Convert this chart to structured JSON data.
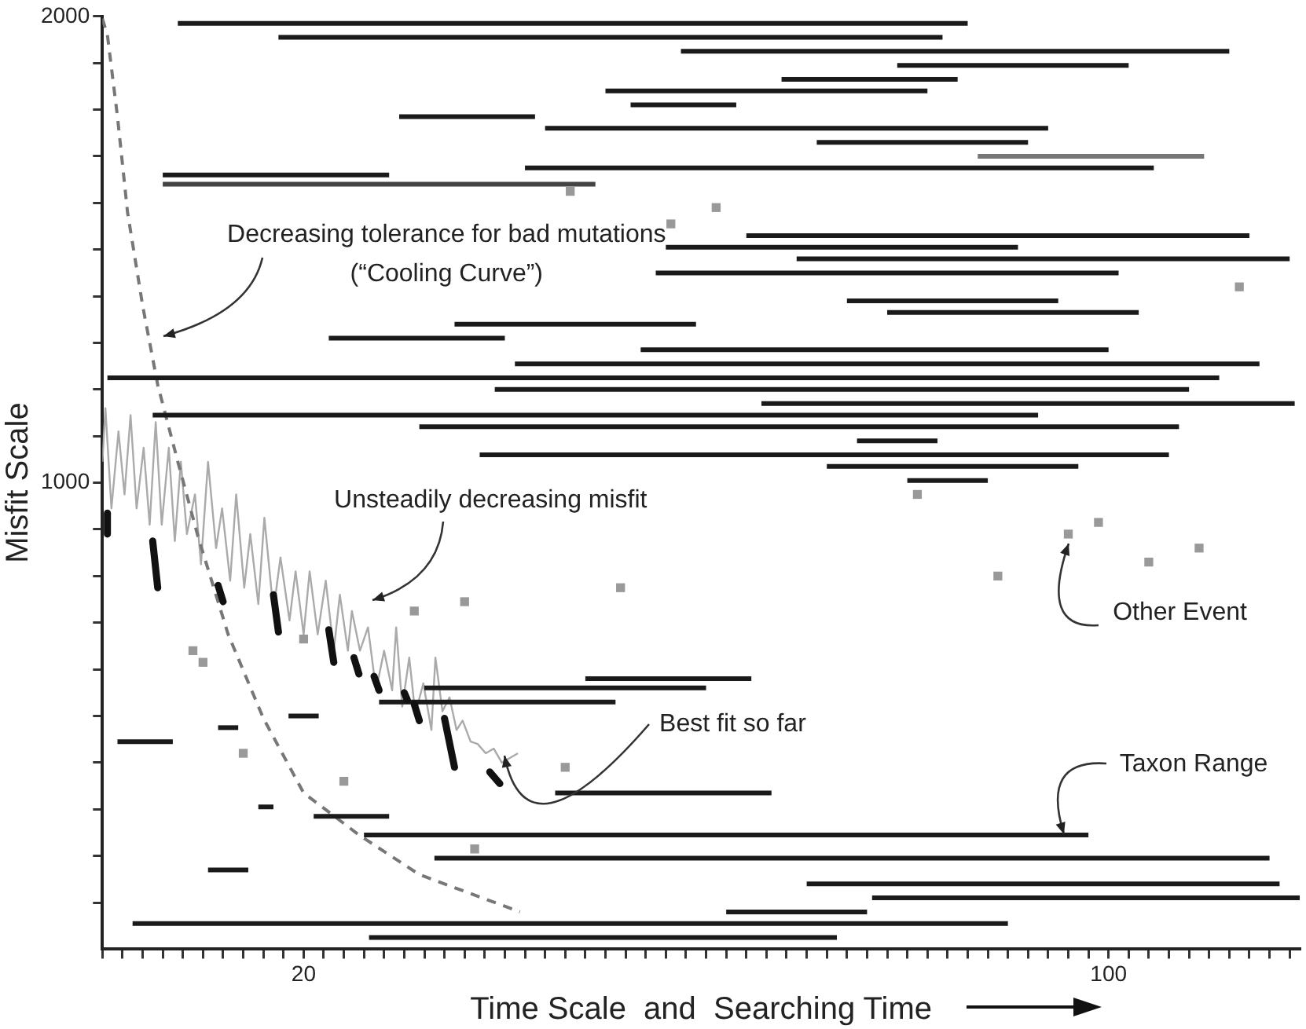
{
  "chart_data": {
    "type": "line",
    "xlabel": "Time Scale  and  Searching Time",
    "ylabel": "Misfit Scale",
    "xlim": [
      0,
      119
    ],
    "ylim": [
      0,
      2000
    ],
    "xticks": [
      {
        "value": 0,
        "label": null
      },
      {
        "value": 2,
        "label": null
      },
      {
        "value": 4,
        "label": null
      },
      {
        "value": 6,
        "label": null
      },
      {
        "value": 8,
        "label": null
      },
      {
        "value": 10,
        "label": null
      },
      {
        "value": 12,
        "label": null
      },
      {
        "value": 14,
        "label": null
      },
      {
        "value": 16,
        "label": null
      },
      {
        "value": 18,
        "label": null
      },
      20,
      {
        "value": 22,
        "label": null
      },
      {
        "value": 24,
        "label": null
      },
      {
        "value": 26,
        "label": null
      },
      {
        "value": 28,
        "label": null
      },
      {
        "value": 30,
        "label": null
      },
      {
        "value": 32,
        "label": null
      },
      {
        "value": 34,
        "label": null
      },
      {
        "value": 36,
        "label": null
      },
      {
        "value": 38,
        "label": null
      },
      {
        "value": 40,
        "label": null
      },
      {
        "value": 42,
        "label": null
      },
      {
        "value": 44,
        "label": null
      },
      {
        "value": 46,
        "label": null
      },
      {
        "value": 48,
        "label": null
      },
      {
        "value": 50,
        "label": null
      },
      {
        "value": 52,
        "label": null
      },
      {
        "value": 54,
        "label": null
      },
      {
        "value": 56,
        "label": null
      },
      {
        "value": 58,
        "label": null
      },
      {
        "value": 60,
        "label": null
      },
      {
        "value": 62,
        "label": null
      },
      {
        "value": 64,
        "label": null
      },
      {
        "value": 66,
        "label": null
      },
      {
        "value": 68,
        "label": null
      },
      {
        "value": 70,
        "label": null
      },
      {
        "value": 72,
        "label": null
      },
      {
        "value": 74,
        "label": null
      },
      {
        "value": 76,
        "label": null
      },
      {
        "value": 78,
        "label": null
      },
      {
        "value": 80,
        "label": null
      },
      {
        "value": 82,
        "label": null
      },
      {
        "value": 84,
        "label": null
      },
      {
        "value": 86,
        "label": null
      },
      {
        "value": 88,
        "label": null
      },
      {
        "value": 90,
        "label": null
      },
      {
        "value": 92,
        "label": null
      },
      {
        "value": 94,
        "label": null
      },
      {
        "value": 96,
        "label": null
      },
      {
        "value": 98,
        "label": null
      },
      100,
      {
        "value": 102,
        "label": null
      },
      {
        "value": 104,
        "label": null
      },
      {
        "value": 106,
        "label": null
      },
      {
        "value": 108,
        "label": null
      },
      {
        "value": 110,
        "label": null
      },
      {
        "value": 112,
        "label": null
      },
      {
        "value": 114,
        "label": null
      },
      {
        "value": 116,
        "label": null
      },
      {
        "value": 118,
        "label": null
      }
    ],
    "yticks": [
      {
        "value": 100,
        "label": null
      },
      {
        "value": 200,
        "label": null
      },
      {
        "value": 300,
        "label": null
      },
      {
        "value": 400,
        "label": null
      },
      {
        "value": 500,
        "label": null
      },
      {
        "value": 600,
        "label": null
      },
      {
        "value": 700,
        "label": null
      },
      {
        "value": 800,
        "label": null
      },
      {
        "value": 900,
        "label": null
      },
      1000,
      {
        "value": 1100,
        "label": null
      },
      {
        "value": 1200,
        "label": null
      },
      {
        "value": 1300,
        "label": null
      },
      {
        "value": 1400,
        "label": null
      },
      {
        "value": 1500,
        "label": null
      },
      {
        "value": 1600,
        "label": null
      },
      {
        "value": 1700,
        "label": null
      },
      {
        "value": 1800,
        "label": null
      },
      {
        "value": 1900,
        "label": null
      },
      2000
    ],
    "grid": false,
    "legend": false,
    "annotations": [
      "Decreasing tolerance for bad mutations\n(“Cooling Curve”)",
      "Unsteadily decreasing misfit",
      {
        "text": "Best fit so far",
        "x": 40,
        "y": 415
      },
      {
        "text": "Other Event",
        "x": 96,
        "y": 870
      },
      {
        "text": "Taxon Range",
        "x": 95.5,
        "y": 245
      }
    ],
    "series": [
      {
        "color": "#aaaaaa",
        "x": [
          0,
          0.3,
          0.9,
          1.6,
          2.2,
          2.8,
          3.4,
          4.1,
          4.7,
          5.3,
          5.9,
          6.6,
          7.2,
          7.8,
          8.4,
          9.2,
          9.8,
          10.5,
          11.3,
          11.9,
          12.7,
          13.3,
          14.1,
          14.7,
          15.5,
          16.1,
          17,
          17.7,
          18.6,
          19.2,
          20,
          20.6,
          21.4,
          22.2,
          23,
          23.6,
          24.4,
          24.8,
          25.6,
          26.4,
          27.2,
          28,
          28.8,
          29.2,
          29.8,
          30.5,
          31.1,
          31.9,
          32.7,
          33.1,
          33.8,
          34.5,
          35.2,
          35.8,
          36.6,
          37.3,
          38.1,
          38.9,
          39.7,
          40.5,
          41.3
        ],
        "values": [
          1045,
          1160,
          945,
          1110,
          975,
          1145,
          945,
          1075,
          910,
          1130,
          910,
          1075,
          875,
          1045,
          890,
          975,
          825,
          1045,
          860,
          945,
          790,
          975,
          775,
          890,
          740,
          925,
          725,
          840,
          705,
          810,
          675,
          810,
          675,
          790,
          640,
          760,
          640,
          725,
          640,
          690,
          555,
          640,
          555,
          690,
          520,
          625,
          505,
          570,
          470,
          625,
          510,
          540,
          470,
          490,
          445,
          440,
          420,
          430,
          400,
          410,
          420
        ]
      },
      {
        "color": "#777777",
        "line_style": "dashed",
        "x": [
          0,
          0.5,
          1.5,
          2.5,
          4,
          5.5,
          7.5,
          9.5,
          12.5,
          16,
          20,
          25.5,
          31.5,
          41.5
        ],
        "values": [
          1995,
          1960,
          1785,
          1580,
          1380,
          1210,
          1045,
          885,
          675,
          495,
          335,
          245,
          160,
          80
        ]
      },
      {
        "color": "#1a1a1a",
        "x": [
          7.5,
          86
        ],
        "values": [
          1985,
          1985
        ]
      },
      {
        "color": "#1a1a1a",
        "x": [
          17.5,
          83.5
        ],
        "values": [
          1955,
          1955
        ]
      },
      {
        "color": "#1a1a1a",
        "x": [
          57.5,
          112
        ],
        "values": [
          1925,
          1925
        ]
      },
      {
        "color": "#1a1a1a",
        "x": [
          79,
          102
        ],
        "values": [
          1895,
          1895
        ]
      },
      {
        "color": "#1a1a1a",
        "x": [
          67.5,
          85
        ],
        "values": [
          1865,
          1865
        ]
      },
      {
        "color": "#1a1a1a",
        "x": [
          50,
          82
        ],
        "values": [
          1840,
          1840
        ]
      },
      {
        "color": "#1a1a1a",
        "x": [
          52.5,
          63
        ],
        "values": [
          1810,
          1810
        ]
      },
      {
        "color": "#1a1a1a",
        "x": [
          29.5,
          43
        ],
        "values": [
          1785,
          1785
        ]
      },
      {
        "color": "#1a1a1a",
        "x": [
          44,
          94
        ],
        "values": [
          1760,
          1760
        ]
      },
      {
        "color": "#1a1a1a",
        "x": [
          71,
          92
        ],
        "values": [
          1730,
          1730
        ]
      },
      {
        "color": "#777777",
        "x": [
          87,
          109.5
        ],
        "values": [
          1700,
          1700
        ]
      },
      {
        "color": "#1a1a1a",
        "x": [
          42,
          104.5
        ],
        "values": [
          1675,
          1675
        ]
      },
      {
        "color": "#1a1a1a",
        "x": [
          6,
          28.5
        ],
        "values": [
          1660,
          1660
        ]
      },
      {
        "color": "#444444",
        "x": [
          6,
          49
        ],
        "values": [
          1640,
          1640
        ]
      },
      {
        "color": "#1a1a1a",
        "x": [
          64,
          114
        ],
        "values": [
          1530,
          1530
        ]
      },
      {
        "color": "#1a1a1a",
        "x": [
          56,
          91
        ],
        "values": [
          1505,
          1505
        ]
      },
      {
        "color": "#1a1a1a",
        "x": [
          69,
          118
        ],
        "values": [
          1480,
          1480
        ]
      },
      {
        "color": "#1a1a1a",
        "x": [
          55,
          101
        ],
        "values": [
          1450,
          1450
        ]
      },
      {
        "color": "#1a1a1a",
        "x": [
          74,
          95
        ],
        "values": [
          1390,
          1390
        ]
      },
      {
        "color": "#1a1a1a",
        "x": [
          78,
          103
        ],
        "values": [
          1365,
          1365
        ]
      },
      {
        "color": "#1a1a1a",
        "x": [
          35,
          59
        ],
        "values": [
          1340,
          1340
        ]
      },
      {
        "color": "#1a1a1a",
        "x": [
          22.5,
          40
        ],
        "values": [
          1310,
          1310
        ]
      },
      {
        "color": "#1a1a1a",
        "x": [
          53.5,
          100
        ],
        "values": [
          1285,
          1285
        ]
      },
      {
        "color": "#1a1a1a",
        "x": [
          41,
          115
        ],
        "values": [
          1255,
          1255
        ]
      },
      {
        "color": "#1a1a1a",
        "x": [
          0.5,
          111
        ],
        "values": [
          1225,
          1225
        ]
      },
      {
        "color": "#1a1a1a",
        "x": [
          39,
          108
        ],
        "values": [
          1200,
          1200
        ]
      },
      {
        "color": "#1a1a1a",
        "x": [
          65.5,
          118.5
        ],
        "values": [
          1170,
          1170
        ]
      },
      {
        "color": "#1a1a1a",
        "x": [
          5,
          93
        ],
        "values": [
          1145,
          1145
        ]
      },
      {
        "color": "#1a1a1a",
        "x": [
          31.5,
          107
        ],
        "values": [
          1120,
          1120
        ]
      },
      {
        "color": "#1a1a1a",
        "x": [
          75,
          83
        ],
        "values": [
          1090,
          1090
        ]
      },
      {
        "color": "#1a1a1a",
        "x": [
          37.5,
          106
        ],
        "values": [
          1060,
          1060
        ]
      },
      {
        "color": "#1a1a1a",
        "x": [
          72,
          97
        ],
        "values": [
          1035,
          1035
        ]
      },
      {
        "color": "#1a1a1a",
        "x": [
          80,
          88
        ],
        "values": [
          1005,
          1005
        ]
      },
      {
        "color": "#1a1a1a",
        "x": [
          48,
          64.5
        ],
        "values": [
          580,
          580
        ]
      },
      {
        "color": "#1a1a1a",
        "x": [
          32,
          60
        ],
        "values": [
          560,
          560
        ]
      },
      {
        "color": "#1a1a1a",
        "x": [
          27.5,
          51
        ],
        "values": [
          530,
          530
        ]
      },
      {
        "color": "#1a1a1a",
        "x": [
          18.5,
          21.5
        ],
        "values": [
          500,
          500
        ]
      },
      {
        "color": "#1a1a1a",
        "x": [
          1.5,
          7
        ],
        "values": [
          445,
          445
        ]
      },
      {
        "color": "#1a1a1a",
        "x": [
          11.5,
          13.5
        ],
        "values": [
          475,
          475
        ]
      },
      {
        "color": "#1a1a1a",
        "x": [
          45,
          66.5
        ],
        "values": [
          335,
          335
        ]
      },
      {
        "color": "#1a1a1a",
        "x": [
          15.5,
          17
        ],
        "values": [
          305,
          305
        ]
      },
      {
        "color": "#1a1a1a",
        "x": [
          21,
          28.5
        ],
        "values": [
          285,
          285
        ]
      },
      {
        "color": "#1a1a1a",
        "x": [
          26,
          98
        ],
        "values": [
          245,
          245
        ]
      },
      {
        "color": "#1a1a1a",
        "x": [
          33,
          116
        ],
        "values": [
          195,
          195
        ]
      },
      {
        "color": "#1a1a1a",
        "x": [
          10.5,
          14.5
        ],
        "values": [
          170,
          170
        ]
      },
      {
        "color": "#1a1a1a",
        "x": [
          70,
          117
        ],
        "values": [
          140,
          140
        ]
      },
      {
        "color": "#1a1a1a",
        "x": [
          76.5,
          119
        ],
        "values": [
          110,
          110
        ]
      },
      {
        "color": "#1a1a1a",
        "x": [
          62,
          76
        ],
        "values": [
          80,
          80
        ]
      },
      {
        "color": "#1a1a1a",
        "x": [
          3,
          90
        ],
        "values": [
          55,
          55
        ]
      },
      {
        "color": "#1a1a1a",
        "x": [
          26.5,
          73
        ],
        "values": [
          25,
          25
        ]
      },
      {
        "color": "#111111",
        "x": [
          0.5,
          0.5,
          3,
          5,
          5.5,
          8,
          11.5,
          12,
          14,
          17,
          17.5,
          20,
          22.5,
          23,
          24,
          25,
          25.5,
          26,
          27,
          27.5,
          29,
          30,
          30.3,
          30.6,
          31,
          31.5,
          33,
          34,
          35,
          37,
          38.5,
          39.5
        ],
        "values": [
          935,
          890,
          null,
          875,
          775,
          null,
          780,
          745,
          null,
          760,
          680,
          null,
          685,
          615,
          null,
          625,
          590,
          null,
          585,
          555,
          null,
          550,
          535,
          null,
          525,
          490,
          null,
          495,
          390,
          null,
          380,
          355
        ]
      },
      {
        "type": "scatter",
        "marker": "square",
        "color": "#999999",
        "x": [
          46.5,
          61,
          56.5,
          113,
          81,
          99,
          96,
          109,
          104,
          89,
          51.5,
          36,
          31,
          20,
          9,
          10,
          14,
          24,
          46,
          37
        ],
        "values": [
          1625,
          1590,
          1555,
          1420,
          975,
          915,
          890,
          860,
          830,
          800,
          775,
          745,
          725,
          665,
          640,
          615,
          420,
          360,
          390,
          215
        ]
      }
    ]
  }
}
